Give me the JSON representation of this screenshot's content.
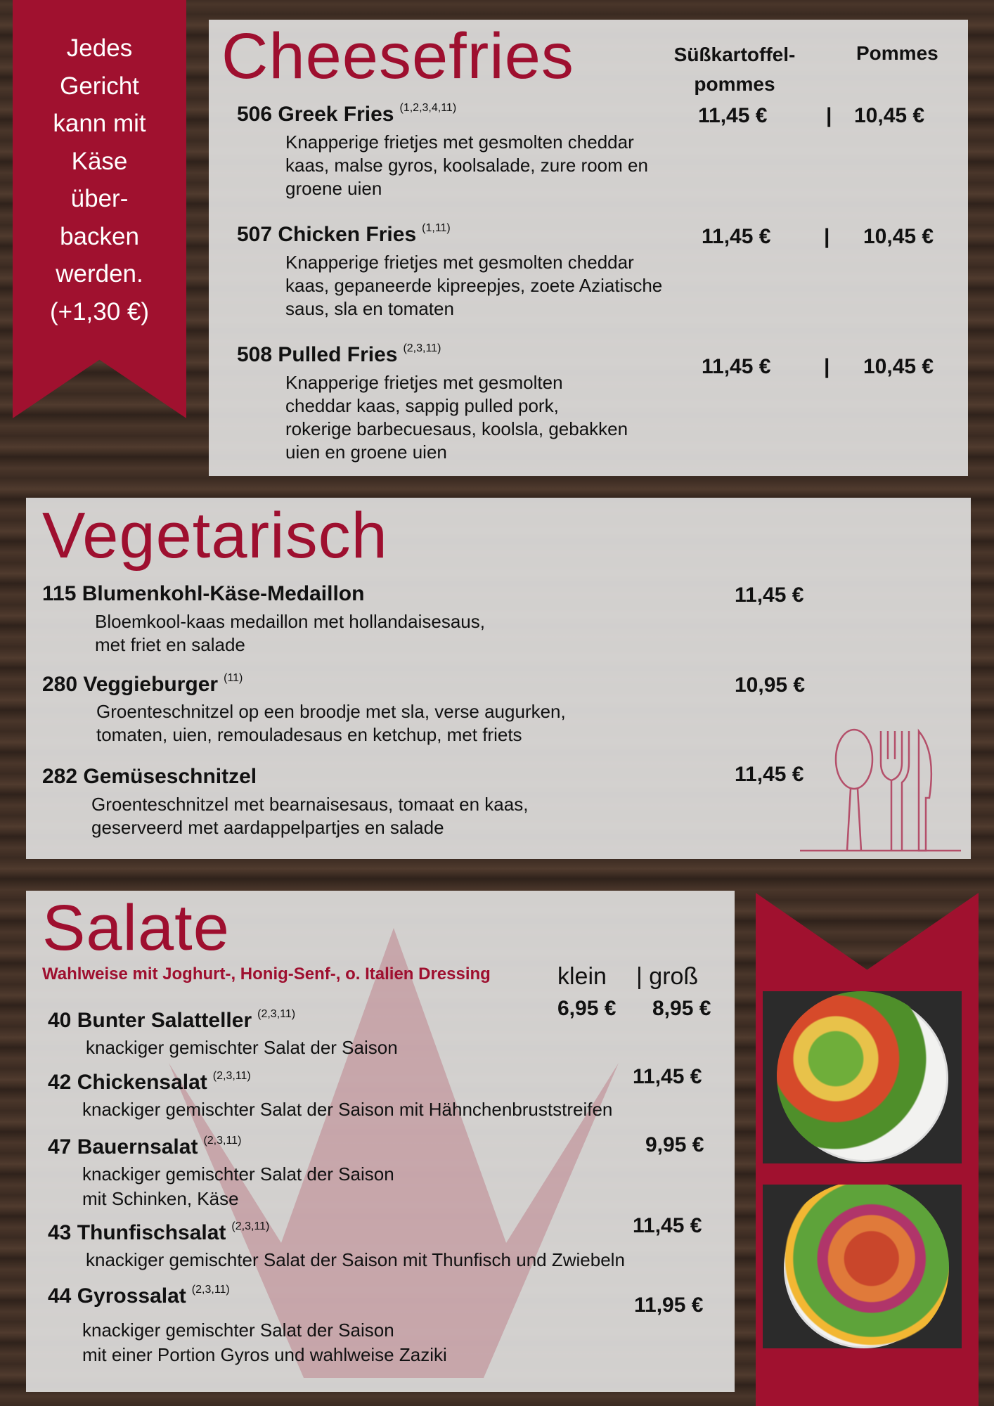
{
  "ribbon_left": {
    "lines": [
      "Jedes",
      "Gericht",
      "kann mit",
      "Käse",
      "über-",
      "backen",
      "werden.",
      "(+1,30 €)"
    ]
  },
  "cheesefries": {
    "title": "Cheesefries",
    "col1_line1": "Süßkartoffel-",
    "col1_line2": "pommes",
    "col2": "Pommes",
    "separator": "|",
    "items": [
      {
        "name": "506 Greek Fries",
        "allergens": "(1,2,3,4,11)",
        "desc": [
          "Knapperige frietjes met gesmolten cheddar",
          "kaas, malse gyros, koolsalade, zure room en",
          "groene uien"
        ],
        "price1": "11,45 €",
        "price2": "10,45 €"
      },
      {
        "name": "507 Chicken Fries",
        "allergens": "(1,11)",
        "desc": [
          "Knapperige frietjes met gesmolten cheddar",
          "kaas, gepaneerde kipreepjes, zoete Aziatische",
          "saus, sla en tomaten"
        ],
        "price1": "11,45 €",
        "price2": "10,45 €"
      },
      {
        "name": "508 Pulled Fries",
        "allergens": "(2,3,11)",
        "desc": [
          "Knapperige frietjes met gesmolten",
          "cheddar kaas, sappig pulled pork,",
          "rokerige barbecuesaus, koolsla, gebakken",
          "uien en groene uien"
        ],
        "price1": "11,45 €",
        "price2": "10,45 €"
      }
    ]
  },
  "vegetarisch": {
    "title": "Vegetarisch",
    "items": [
      {
        "name": "115  Blumenkohl-Käse-Medaillon",
        "allergens": "",
        "desc": [
          "Bloemkool-kaas medaillon met hollandaisesaus,",
          "met friet en salade"
        ],
        "price": "11,45 €"
      },
      {
        "name": "280  Veggieburger",
        "allergens": "(11)",
        "desc": [
          "Groenteschnitzel op een broodje met sla, verse augurken,",
          "tomaten, uien, remouladesaus en ketchup, met friets"
        ],
        "price": "10,95 €"
      },
      {
        "name": "282  Gemüseschnitzel",
        "allergens": "",
        "desc": [
          "Groenteschnitzel met bearnaisesaus, tomaat en kaas,",
          "geserveerd met aardappelpartjes en salade"
        ],
        "price": "11,45 €"
      }
    ]
  },
  "salate": {
    "title": "Salate",
    "subtitle": "Wahlweise mit Joghurt-, Honig-Senf-, o. Italien Dressing",
    "col_small": "klein",
    "col_large": "| groß",
    "items": [
      {
        "name": "40 Bunter Salatteller",
        "allergens": "(2,3,11)",
        "desc": [
          "knackiger gemischter Salat der Saison"
        ],
        "price": "6,95 €",
        "price_large": "8,95 €"
      },
      {
        "name": "42 Chickensalat",
        "allergens": "(2,3,11)",
        "desc": [
          "knackiger gemischter Salat der Saison mit Hähnchenbruststreifen"
        ],
        "price": "11,45 €"
      },
      {
        "name": "47 Bauernsalat",
        "allergens": "(2,3,11)",
        "desc": [
          "knackiger gemischter Salat der Saison",
          "mit Schinken, Käse"
        ],
        "price": "9,95 €"
      },
      {
        "name": "43 Thunfischsalat",
        "allergens": "(2,3,11)",
        "desc": [
          "knackiger gemischter Salat der Saison mit Thunfisch und Zwiebeln"
        ],
        "price": "11,45 €"
      },
      {
        "name": "44 Gyrossalat",
        "allergens": "(2,3,11)",
        "desc": [
          "knackiger gemischter Salat der Saison",
          "mit einer Portion Gyros und wahlweise Zaziki"
        ],
        "price": "11,95 €"
      }
    ]
  },
  "colors": {
    "accent": "#9e0f2f",
    "panel": "#dedddb",
    "background": "#3b2b22"
  },
  "icons": [
    "cutlery-icon",
    "salad-plate-photo"
  ]
}
